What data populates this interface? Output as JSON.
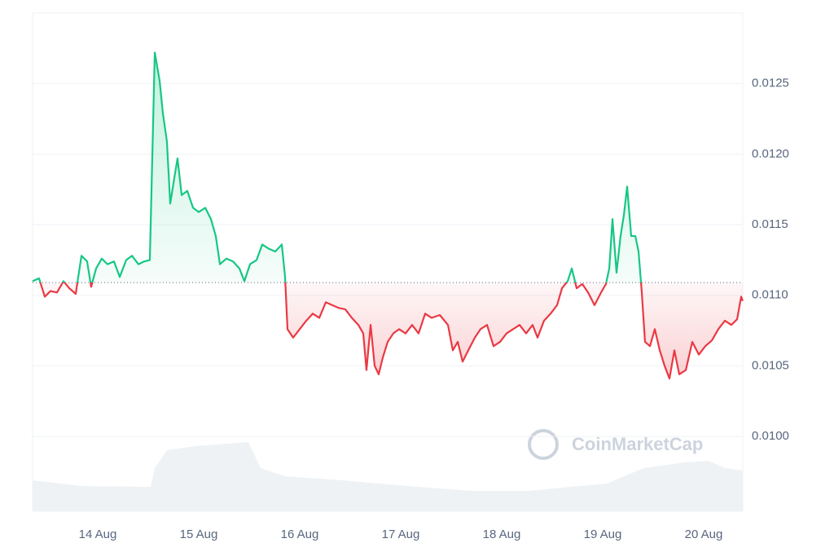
{
  "chart_data": {
    "type": "line",
    "watermark": "CoinMarketCap",
    "up_color": "#16c784",
    "down_color": "#ea3943",
    "baseline": 0.01109,
    "xlim": [
      13.355,
      20.387
    ],
    "ylim": [
      0.00947,
      0.013
    ],
    "xticks": [
      {
        "value": 14,
        "label": "14 Aug"
      },
      {
        "value": 15,
        "label": "15 Aug"
      },
      {
        "value": 16,
        "label": "16 Aug"
      },
      {
        "value": 17,
        "label": "17 Aug"
      },
      {
        "value": 18,
        "label": "18 Aug"
      },
      {
        "value": 19,
        "label": "19 Aug"
      },
      {
        "value": 20,
        "label": "20 Aug"
      }
    ],
    "yticks": [
      {
        "value": 0.01,
        "label": "0.0100"
      },
      0.0105,
      {
        "value": 0.011,
        "label": "0.0110"
      },
      0.0115,
      {
        "value": 0.012,
        "label": "0.0120"
      },
      0.0125
    ],
    "grid": true,
    "x": [
      13.355,
      13.419,
      13.476,
      13.532,
      13.597,
      13.661,
      13.718,
      13.782,
      13.839,
      13.895,
      13.935,
      13.984,
      14.04,
      14.097,
      14.161,
      14.218,
      14.282,
      14.339,
      14.403,
      14.46,
      14.516,
      14.565,
      14.613,
      14.645,
      14.685,
      14.718,
      14.758,
      14.79,
      14.831,
      14.887,
      14.944,
      15.0,
      15.065,
      15.121,
      15.169,
      15.21,
      15.274,
      15.339,
      15.403,
      15.452,
      15.508,
      15.573,
      15.629,
      15.694,
      15.758,
      15.823,
      15.855,
      15.879,
      15.935,
      16.0,
      16.065,
      16.129,
      16.194,
      16.258,
      16.323,
      16.387,
      16.452,
      16.516,
      16.581,
      16.629,
      16.661,
      16.702,
      16.742,
      16.782,
      16.823,
      16.871,
      16.927,
      16.984,
      17.048,
      17.113,
      17.177,
      17.242,
      17.306,
      17.387,
      17.468,
      17.516,
      17.565,
      17.613,
      17.669,
      17.734,
      17.79,
      17.855,
      17.919,
      17.984,
      18.048,
      18.113,
      18.177,
      18.242,
      18.306,
      18.355,
      18.419,
      18.484,
      18.548,
      18.597,
      18.653,
      18.694,
      18.742,
      18.798,
      18.855,
      18.919,
      18.984,
      19.032,
      19.065,
      19.097,
      19.137,
      19.177,
      19.21,
      19.242,
      19.282,
      19.323,
      19.355,
      19.387,
      19.419,
      19.468,
      19.516,
      19.565,
      19.613,
      19.661,
      19.71,
      19.758,
      19.823,
      19.887,
      19.952,
      20.016,
      20.081,
      20.145,
      20.21,
      20.274,
      20.331,
      20.371,
      20.387
    ],
    "values": [
      0.0111,
      0.01112,
      0.01099,
      0.01103,
      0.01102,
      0.0111,
      0.01105,
      0.01101,
      0.01128,
      0.01124,
      0.01106,
      0.01119,
      0.01126,
      0.01122,
      0.01124,
      0.01113,
      0.01125,
      0.01128,
      0.01122,
      0.01124,
      0.01125,
      0.01272,
      0.01252,
      0.01229,
      0.01209,
      0.01165,
      0.01183,
      0.01197,
      0.01171,
      0.01174,
      0.01162,
      0.01159,
      0.01162,
      0.01154,
      0.01142,
      0.01122,
      0.01126,
      0.01124,
      0.01119,
      0.0111,
      0.01122,
      0.01125,
      0.01136,
      0.01133,
      0.01131,
      0.01136,
      0.01113,
      0.01076,
      0.0107,
      0.01076,
      0.01082,
      0.01087,
      0.01084,
      0.01095,
      0.01093,
      0.01091,
      0.0109,
      0.01084,
      0.01079,
      0.01073,
      0.01047,
      0.01079,
      0.0105,
      0.01044,
      0.01056,
      0.01067,
      0.01073,
      0.01076,
      0.01073,
      0.01079,
      0.01073,
      0.01087,
      0.01084,
      0.01086,
      0.01079,
      0.01061,
      0.01067,
      0.01053,
      0.01061,
      0.0107,
      0.01076,
      0.01079,
      0.01064,
      0.01067,
      0.01073,
      0.01076,
      0.01079,
      0.01073,
      0.01079,
      0.0107,
      0.01082,
      0.01087,
      0.01093,
      0.01105,
      0.0111,
      0.01119,
      0.01105,
      0.01108,
      0.01102,
      0.01093,
      0.01102,
      0.01108,
      0.01119,
      0.01154,
      0.01116,
      0.01142,
      0.01157,
      0.01177,
      0.01142,
      0.01142,
      0.01131,
      0.01102,
      0.01067,
      0.01064,
      0.01076,
      0.01061,
      0.0105,
      0.01041,
      0.01061,
      0.01044,
      0.01047,
      0.01067,
      0.01058,
      0.01064,
      0.01068,
      0.01076,
      0.01082,
      0.01079,
      0.01083,
      0.01099,
      0.01096
    ]
  }
}
